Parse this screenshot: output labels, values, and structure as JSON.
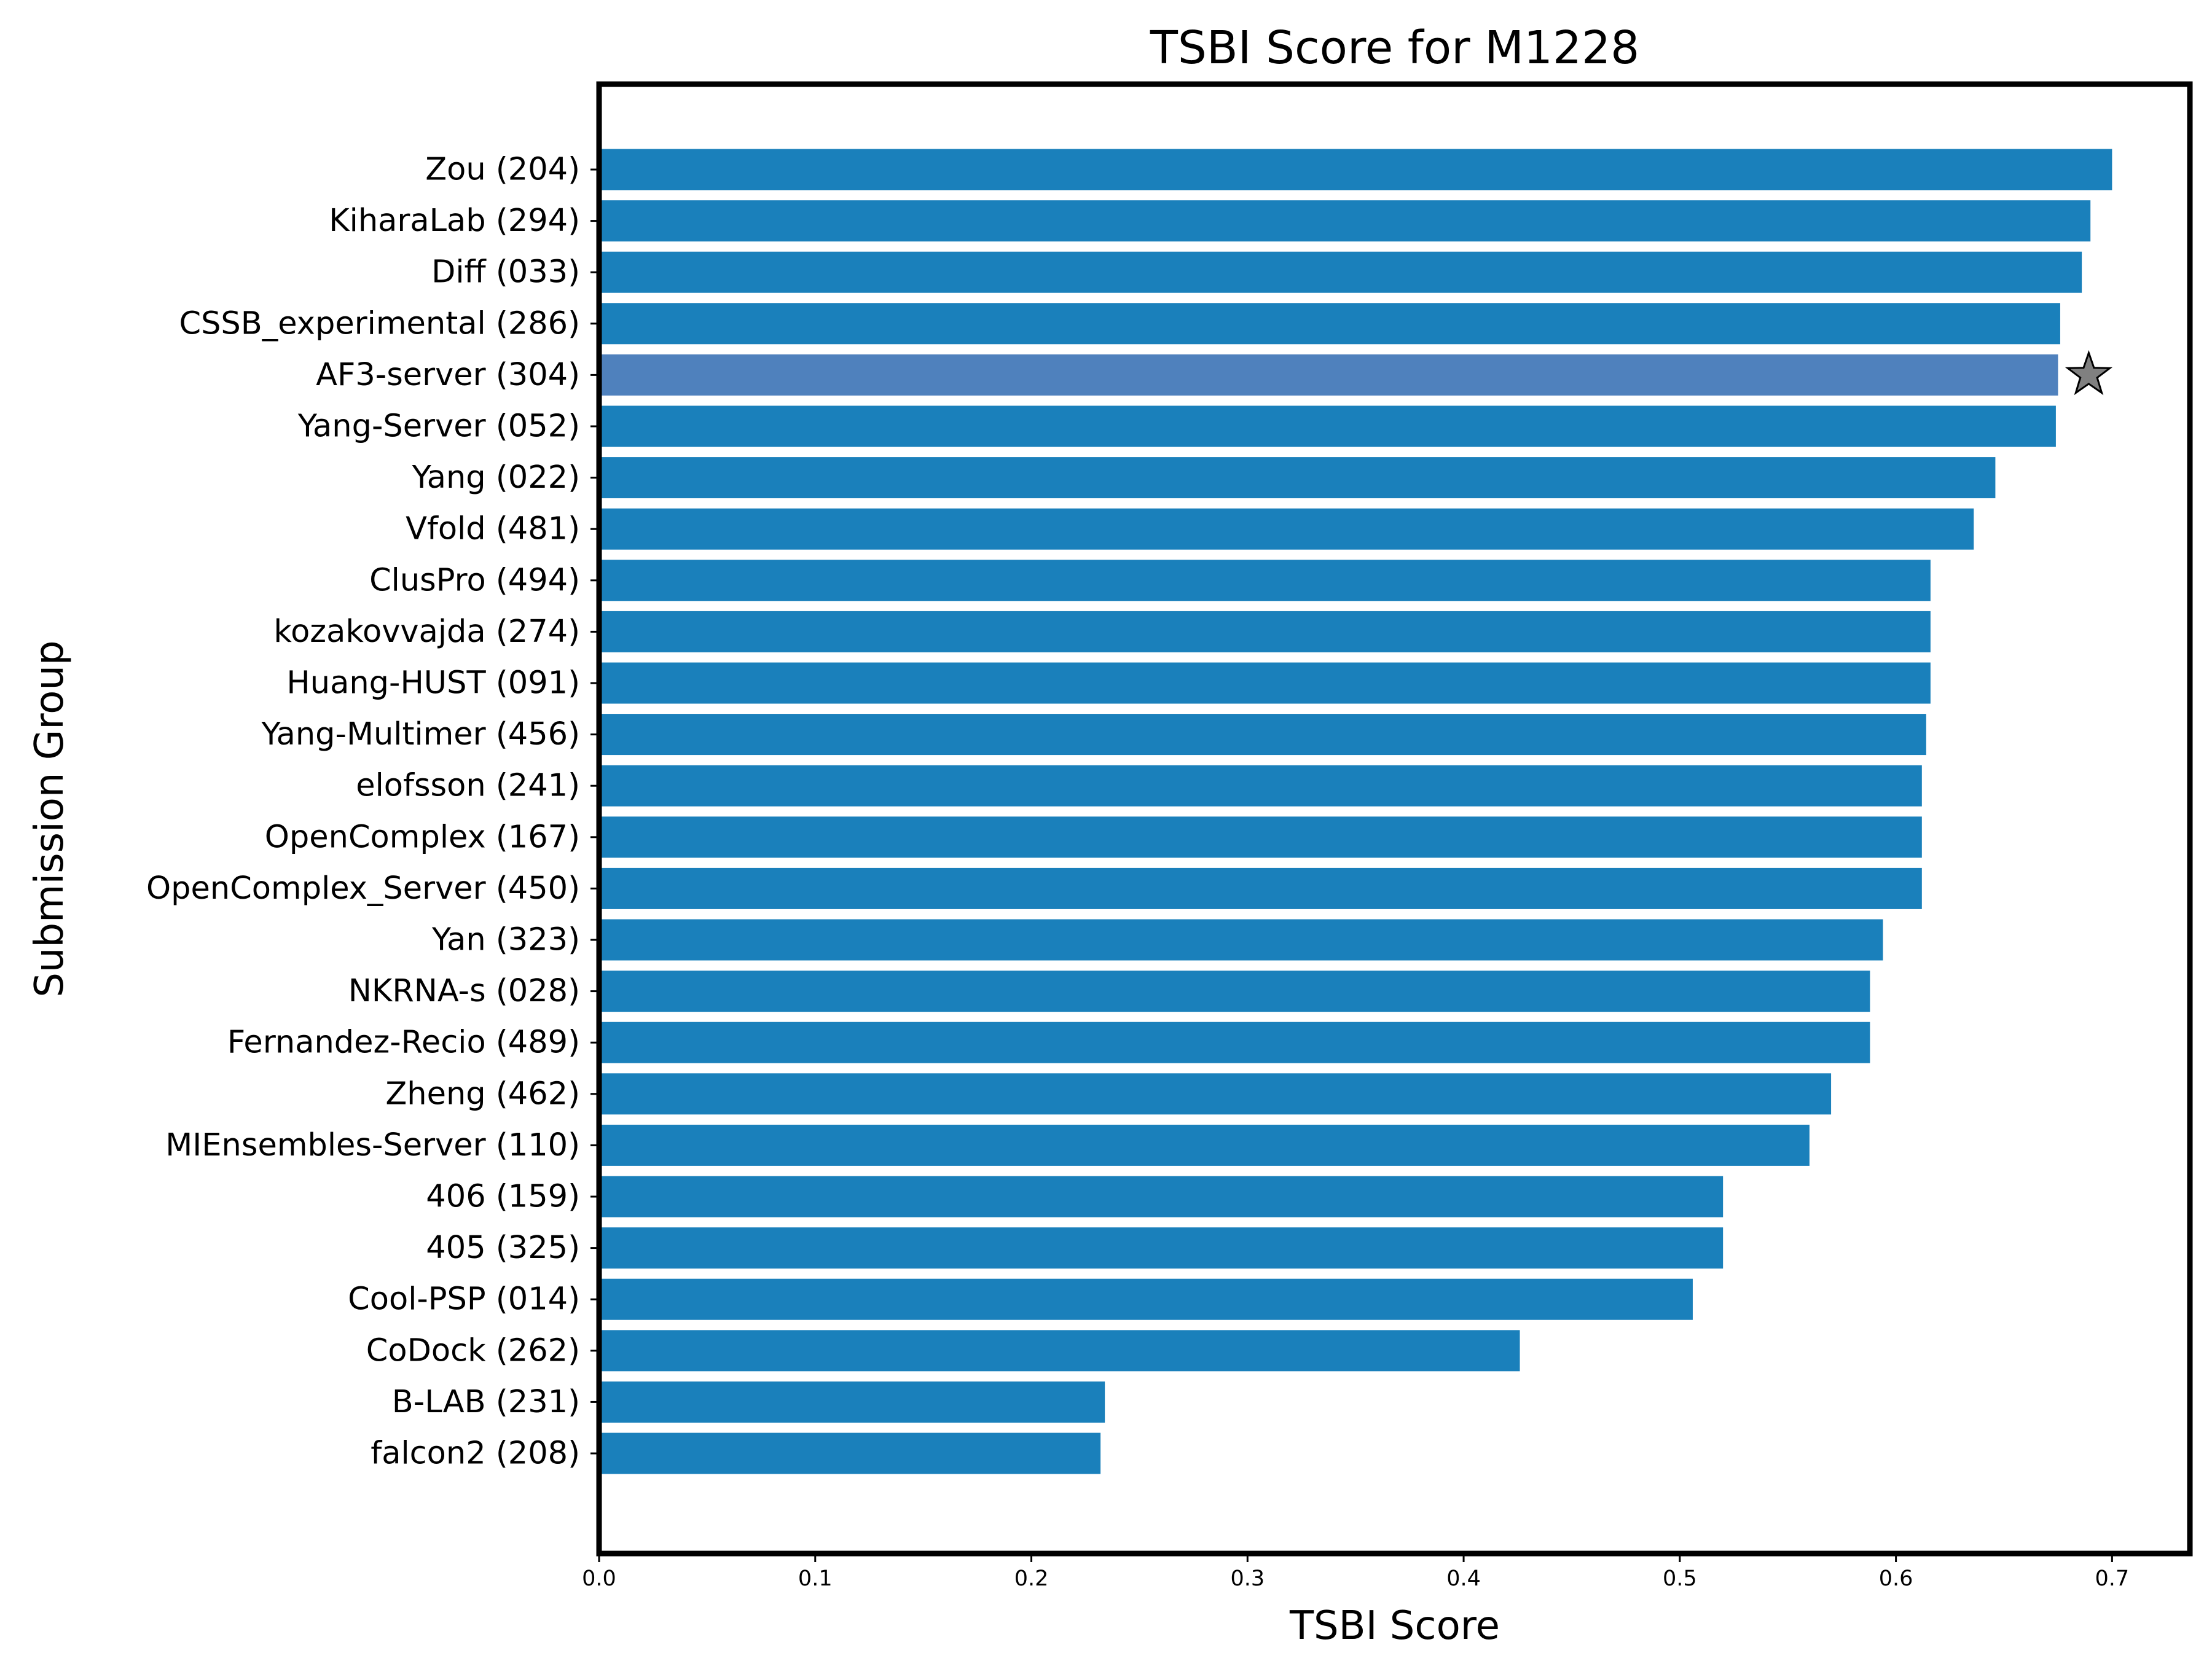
{
  "chart_data": {
    "type": "bar",
    "orientation": "horizontal",
    "title": "TSBI Score for M1228",
    "xlabel": "TSBI Score",
    "ylabel": "Submission Group",
    "xlim": [
      0,
      0.736
    ],
    "xticks": [
      "0.0",
      "0.1",
      "0.2",
      "0.3",
      "0.4",
      "0.5",
      "0.6",
      "0.7"
    ],
    "bar_color": "#1a80bb",
    "highlight_color": "#4f81bd",
    "star_color": "#808080",
    "highlight_category": "AF3-server (304)",
    "categories": [
      "Zou (204)",
      "KiharaLab (294)",
      "Diff (033)",
      "CSSB_experimental (286)",
      "AF3-server (304)",
      "Yang-Server (052)",
      "Yang (022)",
      "Vfold (481)",
      "ClusPro (494)",
      "kozakovvajda (274)",
      "Huang-HUST (091)",
      "Yang-Multimer (456)",
      "elofsson (241)",
      "OpenComplex (167)",
      "OpenComplex_Server (450)",
      "Yan (323)",
      "NKRNA-s (028)",
      "Fernandez-Recio (489)",
      "Zheng (462)",
      "MIEnsembles-Server (110)",
      "406 (159)",
      "405 (325)",
      "Cool-PSP (014)",
      "CoDock (262)",
      "B-LAB (231)",
      "falcon2 (208)"
    ],
    "values": [
      0.7,
      0.69,
      0.686,
      0.676,
      0.675,
      0.674,
      0.646,
      0.636,
      0.616,
      0.616,
      0.616,
      0.614,
      0.612,
      0.612,
      0.612,
      0.594,
      0.588,
      0.588,
      0.57,
      0.56,
      0.52,
      0.52,
      0.506,
      0.426,
      0.234,
      0.232
    ]
  }
}
